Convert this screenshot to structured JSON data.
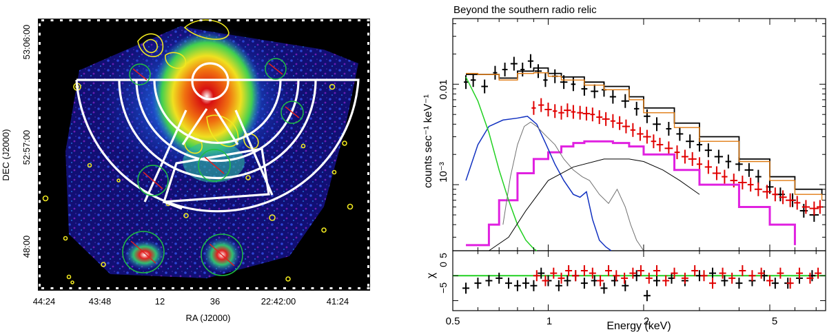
{
  "chart_data": [
    {
      "type": "image",
      "panel": "left",
      "xlabel": "RA (J2000)",
      "ylabel": "DEC (J2000)",
      "x_ticks": [
        "44:24",
        "43:48",
        "12",
        "36",
        "22:42:00",
        "41:24"
      ],
      "y_ticks": [
        "53:06:00",
        "52:57:00",
        "48:00"
      ],
      "overlays": [
        "X-ray surface brightness map",
        "yellow radio contours",
        "white sector annuli",
        "green circles (excluded point sources)"
      ]
    },
    {
      "type": "line",
      "panel": "right",
      "title": "Beyond the southern radio relic",
      "xlabel": "Energy (keV)",
      "ylabel": "counts sec⁻¹ keV⁻¹",
      "residual_ylabel": "χ",
      "x_scale": "log",
      "y_scale": "log",
      "xlim": [
        0.5,
        7.5
      ],
      "ylim": [
        0.00022,
        0.045
      ],
      "x_ticks": [
        "0.5",
        "1",
        "2",
        "5"
      ],
      "y_ticks": [
        "0.01",
        "10⁻³"
      ],
      "residual_ylim": [
        -7,
        5
      ],
      "residual_ticks": [
        "5",
        "0",
        "−5"
      ],
      "series": [
        {
          "name": "data set 1 (black)",
          "color": "#000000",
          "style": "crosses",
          "x": [
            0.55,
            0.58,
            0.63,
            0.68,
            0.73,
            0.78,
            0.83,
            0.88,
            0.93,
            0.98,
            1.05,
            1.12,
            1.2,
            1.3,
            1.4,
            1.5,
            1.6,
            1.75,
            1.9,
            2.05,
            2.2,
            2.4,
            2.6,
            2.8,
            3.0,
            3.2,
            3.45,
            3.7,
            4.0,
            4.3,
            4.6,
            5.0,
            5.4,
            5.9,
            6.4,
            6.9
          ],
          "y": [
            0.0105,
            0.011,
            0.0095,
            0.013,
            0.014,
            0.016,
            0.014,
            0.017,
            0.0135,
            0.011,
            0.012,
            0.0105,
            0.01,
            0.009,
            0.0085,
            0.0088,
            0.0075,
            0.0068,
            0.0057,
            0.0048,
            0.004,
            0.0036,
            0.0032,
            0.0027,
            0.0025,
            0.0022,
            0.0019,
            0.0017,
            0.0016,
            0.0014,
            0.0012,
            0.00095,
            0.0008,
            0.0007,
            0.00055,
            0.0005
          ]
        },
        {
          "name": "data set 2 (red)",
          "color": "#e00000",
          "style": "crosses",
          "x": [
            0.9,
            0.95,
            1.0,
            1.05,
            1.1,
            1.15,
            1.2,
            1.26,
            1.32,
            1.38,
            1.45,
            1.52,
            1.6,
            1.68,
            1.76,
            1.85,
            1.95,
            2.05,
            2.15,
            2.25,
            2.4,
            2.55,
            2.7,
            2.85,
            3.0,
            3.2,
            3.4,
            3.6,
            3.85,
            4.1,
            4.35,
            4.6,
            4.9,
            5.2,
            5.5,
            5.8,
            6.1,
            6.5,
            6.9,
            7.2
          ],
          "y": [
            0.0058,
            0.0062,
            0.0056,
            0.0054,
            0.0052,
            0.0055,
            0.0053,
            0.0052,
            0.0051,
            0.005,
            0.0047,
            0.0045,
            0.0043,
            0.0041,
            0.0038,
            0.0035,
            0.0032,
            0.003,
            0.0027,
            0.0025,
            0.0023,
            0.0021,
            0.0019,
            0.0018,
            0.0016,
            0.0015,
            0.0013,
            0.0012,
            0.0011,
            0.00105,
            0.001,
            0.0009,
            0.00085,
            0.0008,
            0.00075,
            0.0007,
            0.00066,
            0.0006,
            0.00058,
            0.0006
          ]
        },
        {
          "name": "model (black)",
          "color": "#000000",
          "style": "step",
          "x": [
            0.55,
            0.6,
            0.7,
            0.8,
            0.9,
            1.0,
            1.1,
            1.3,
            1.5,
            1.8,
            2.0,
            2.5,
            3.0,
            4.0,
            5.0,
            6.0,
            7.3
          ],
          "y": [
            0.0125,
            0.0125,
            0.0115,
            0.0135,
            0.0145,
            0.0128,
            0.0118,
            0.0105,
            0.0095,
            0.0075,
            0.0058,
            0.0041,
            0.003,
            0.0018,
            0.0012,
            0.0009,
            0.0008
          ]
        },
        {
          "name": "model (orange)",
          "color": "#e07a10",
          "style": "step",
          "x": [
            0.55,
            0.6,
            0.7,
            0.8,
            0.9,
            1.0,
            1.1,
            1.3,
            1.5,
            1.8,
            2.0,
            2.5,
            3.0,
            4.0,
            5.0,
            6.0,
            7.3
          ],
          "y": [
            0.0128,
            0.0125,
            0.011,
            0.0128,
            0.013,
            0.012,
            0.011,
            0.0098,
            0.0088,
            0.007,
            0.0052,
            0.0037,
            0.0027,
            0.0017,
            0.0011,
            0.0008,
            0.0007
          ]
        },
        {
          "name": "magenta component",
          "color": "#e020e0",
          "style": "step",
          "x": [
            0.55,
            0.6,
            0.65,
            0.7,
            0.8,
            0.9,
            1.0,
            1.1,
            1.2,
            1.3,
            1.4,
            1.6,
            1.8,
            2.0,
            2.5,
            3.0,
            4.0,
            5.0,
            6.0
          ],
          "y": [
            0.00025,
            0.00025,
            0.0004,
            0.0007,
            0.0013,
            0.0018,
            0.0021,
            0.0024,
            0.0026,
            0.0027,
            0.0027,
            0.0026,
            0.0024,
            0.002,
            0.0014,
            0.001,
            0.0006,
            0.0004,
            0.00025
          ]
        },
        {
          "name": "blue component",
          "color": "#1030c0",
          "style": "line",
          "x": [
            0.55,
            0.6,
            0.65,
            0.72,
            0.8,
            0.86,
            0.92,
            0.98,
            1.05,
            1.12,
            1.2,
            1.26,
            1.32,
            1.38,
            1.45,
            1.52,
            1.58
          ],
          "y": [
            0.0011,
            0.0025,
            0.0038,
            0.0044,
            0.0046,
            0.0048,
            0.004,
            0.0026,
            0.0016,
            0.0011,
            0.0008,
            0.00075,
            0.00085,
            0.00045,
            0.00028,
            0.00024,
            0.00022
          ]
        },
        {
          "name": "green component",
          "color": "#20d020",
          "style": "line",
          "x": [
            0.55,
            0.6,
            0.65,
            0.7,
            0.75,
            0.8,
            0.85,
            0.9,
            0.92
          ],
          "y": [
            0.0118,
            0.0068,
            0.0033,
            0.0014,
            0.0007,
            0.0004,
            0.00028,
            0.00023,
            0.00022
          ]
        },
        {
          "name": "gray component",
          "color": "#707070",
          "style": "line",
          "x": [
            0.72,
            0.76,
            0.8,
            0.84,
            0.88,
            0.92,
            0.98,
            1.05,
            1.12,
            1.2,
            1.28,
            1.35,
            1.45,
            1.55,
            1.65,
            1.75,
            1.82,
            1.9,
            2.0
          ],
          "y": [
            0.0004,
            0.0012,
            0.0025,
            0.0038,
            0.0042,
            0.0038,
            0.0031,
            0.0025,
            0.0018,
            0.0014,
            0.0012,
            0.0011,
            0.0008,
            0.00065,
            0.0009,
            0.0006,
            0.0004,
            0.00028,
            0.00022
          ]
        },
        {
          "name": "thin black component",
          "color": "#000000",
          "style": "line",
          "x": [
            0.65,
            0.75,
            0.85,
            1.0,
            1.2,
            1.5,
            1.8,
            2.0,
            2.3,
            2.6,
            3.0
          ],
          "y": [
            0.00022,
            0.0003,
            0.00055,
            0.0011,
            0.0015,
            0.0018,
            0.0018,
            0.0017,
            0.0014,
            0.0011,
            0.0008
          ]
        }
      ],
      "residuals": [
        {
          "name": "residuals set 1 (black)",
          "color": "#000000",
          "x": [
            0.55,
            0.6,
            0.65,
            0.7,
            0.75,
            0.8,
            0.85,
            0.9,
            0.95,
            1.0,
            1.08,
            1.15,
            1.22,
            1.3,
            1.4,
            1.5,
            1.62,
            1.75,
            1.9,
            2.05,
            2.2,
            2.45,
            2.7,
            3.0,
            3.3,
            3.6,
            4.0,
            4.4,
            4.8,
            5.2,
            5.7,
            6.2,
            6.8
          ],
          "y": [
            -2.5,
            -1.5,
            -1,
            -0.5,
            -1.5,
            -2,
            -1.5,
            -2,
            0.5,
            -1,
            -2,
            -1,
            0,
            -1.5,
            -1,
            -2.5,
            -1,
            -2,
            0,
            -4,
            -1,
            -0.5,
            -1,
            0,
            0.5,
            -1,
            -1.5,
            -1,
            0,
            -1.5,
            -1.5,
            -0.5,
            0
          ]
        },
        {
          "name": "residuals set 2 (red)",
          "color": "#e00000",
          "x": [
            0.92,
            0.98,
            1.04,
            1.1,
            1.16,
            1.22,
            1.3,
            1.38,
            1.46,
            1.55,
            1.64,
            1.74,
            1.85,
            1.96,
            2.08,
            2.2,
            2.35,
            2.5,
            2.7,
            2.9,
            3.1,
            3.3,
            3.55,
            3.8,
            4.1,
            4.4,
            4.7,
            5.0,
            5.4,
            5.8,
            6.2,
            6.7,
            7.1
          ],
          "y": [
            0,
            -1,
            0.5,
            -0.5,
            1,
            0,
            1,
            0.5,
            -1,
            1,
            0,
            -0.5,
            0.5,
            1,
            -0.5,
            1,
            -1,
            0.5,
            -0.5,
            1,
            0,
            -1.5,
            0.5,
            -0.5,
            1,
            0,
            0.5,
            -1,
            0.5,
            -1.5,
            0.5,
            -0.5,
            0.5
          ]
        }
      ]
    }
  ]
}
